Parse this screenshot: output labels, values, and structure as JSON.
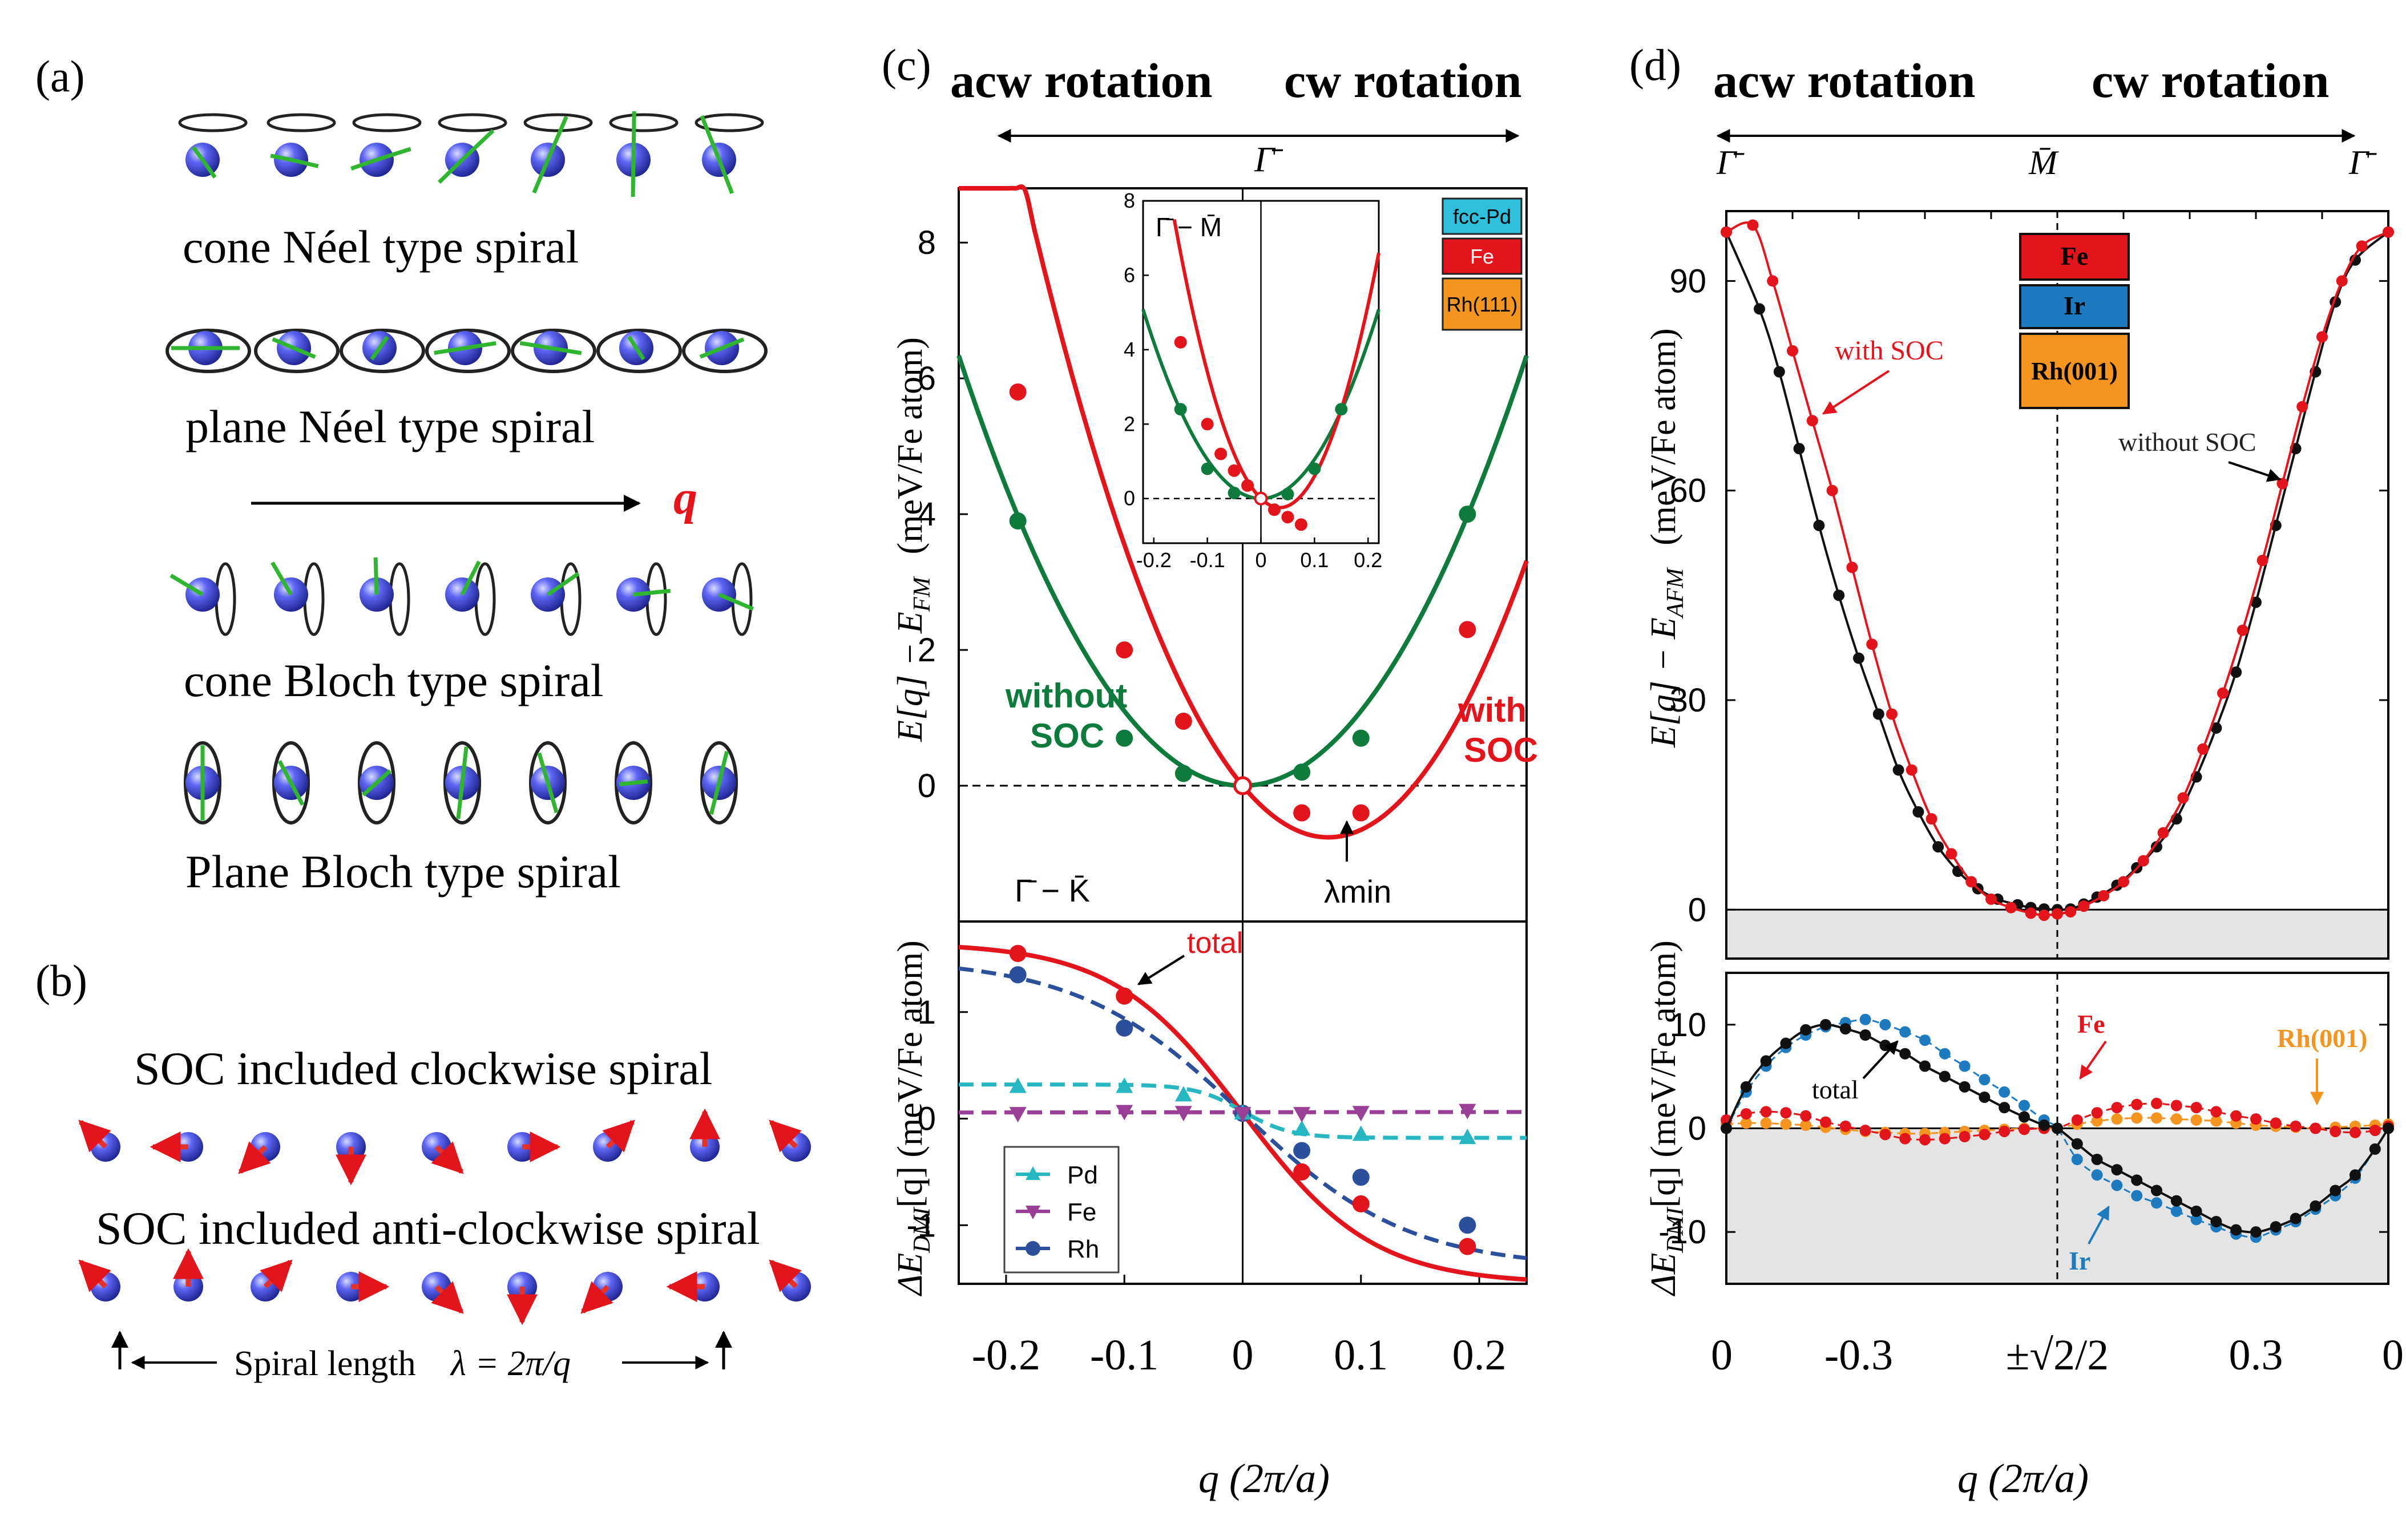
{
  "panel_a": {
    "label": "(a)",
    "rows": [
      {
        "caption": "cone Néel type spiral"
      },
      {
        "caption": "plane Néel type spiral"
      },
      {
        "caption": "cone Bloch type spiral"
      },
      {
        "caption": "Plane Bloch type spiral"
      }
    ],
    "q_label": "q",
    "q_color": "#e8131b"
  },
  "panel_b": {
    "label": "(b)",
    "caption_cw": "SOC included clockwise spiral",
    "caption_acw": "SOC included anti-clockwise spiral",
    "spiral_length_label": "Spiral length",
    "lambda_label": "λ = 2π/q"
  },
  "colors": {
    "red": "#e4141c",
    "green": "#0e7a3c",
    "black": "#111111",
    "blue": "#1f7bc0",
    "orange": "#f5941e",
    "cyan": "#27b7c1",
    "purple": "#9b3f96",
    "navy": "#2c4f9c",
    "sphere": "#3e46e0",
    "spin_green": "#2fb52f",
    "spin_red": "#e5332a"
  },
  "chart_data": [
    {
      "id": "c-top",
      "type": "line",
      "panel_label": "(c)",
      "header_left": "acw rotation",
      "header_right": "cw rotation",
      "top_symbol": "Γ̄",
      "ylabel": "E[q] − E_FM (meV/Fe atom)",
      "ylabel_a": "E[q] − E",
      "ylabel_sub": "FM",
      "ylabel_b": "(meV/Fe atom)",
      "xlim": [
        -0.24,
        0.24
      ],
      "ylim": [
        -2.0,
        8.8
      ],
      "yticks": [
        "0",
        "2",
        "4",
        "6",
        "8"
      ],
      "path_label": "Γ̄ − K̄",
      "annotation_left": [
        "without",
        "SOC"
      ],
      "annotation_right": [
        "with",
        "SOC"
      ],
      "annotation_min": "λmin",
      "series": [
        {
          "name": "without SOC",
          "color": "green",
          "x": [
            -0.19,
            -0.1,
            -0.05,
            0.0,
            0.05,
            0.1,
            0.19
          ],
          "y": [
            3.9,
            0.7,
            0.18,
            0.0,
            0.2,
            0.7,
            4.0
          ]
        },
        {
          "name": "with SOC",
          "color": "red",
          "x": [
            -0.19,
            -0.1,
            -0.05,
            0.0,
            0.05,
            0.1,
            0.19
          ],
          "y": [
            5.8,
            2.0,
            0.95,
            0.0,
            -0.4,
            -0.4,
            2.3
          ]
        }
      ]
    },
    {
      "id": "c-inset",
      "type": "line",
      "path_label": "Γ̄ − M̄",
      "xlim": [
        -0.22,
        0.22
      ],
      "ylim": [
        -1.2,
        8
      ],
      "xticks": [
        "-0.2",
        "-0.1",
        "0",
        "0.1",
        "0.2"
      ],
      "yticks": [
        "0",
        "2",
        "4",
        "6",
        "8"
      ],
      "legend": [
        "fcc-Pd",
        "Fe",
        "Rh(111)"
      ],
      "legend_colors": [
        "#2fbfdc",
        "#e4141c",
        "#f5941e"
      ],
      "series": [
        {
          "name": "without SOC",
          "color": "green",
          "x": [
            -0.15,
            -0.1,
            -0.05,
            0.0,
            0.05,
            0.1,
            0.15
          ],
          "y": [
            2.4,
            0.8,
            0.15,
            0.0,
            0.12,
            0.8,
            2.4
          ]
        },
        {
          "name": "with SOC",
          "color": "red",
          "x": [
            -0.15,
            -0.1,
            -0.075,
            -0.05,
            -0.025,
            0.0,
            0.025,
            0.05,
            0.075
          ],
          "y": [
            4.2,
            2.0,
            1.2,
            0.75,
            0.35,
            0.0,
            -0.3,
            -0.5,
            -0.7
          ]
        }
      ]
    },
    {
      "id": "c-bottom",
      "type": "line",
      "ylabel": "ΔE_DMI[q] (meV/Fe atom)",
      "ylabel_a": "ΔE",
      "ylabel_sub": "DMI",
      "ylabel_b": "[q]  (meV/Fe atom)",
      "xlim": [
        -0.24,
        0.24
      ],
      "ylim": [
        -1.55,
        1.85
      ],
      "xticks": [
        "-0.2",
        "-0.1",
        "0",
        "0.1",
        "0.2"
      ],
      "yticks": [
        "-1",
        "0",
        "1"
      ],
      "xlabel": "q (2π/a)",
      "total_label": "total",
      "legend": [
        "Pd",
        "Fe",
        "Rh"
      ],
      "series": [
        {
          "name": "total",
          "color": "red",
          "x": [
            -0.19,
            -0.1,
            0.0,
            0.05,
            0.1,
            0.19
          ],
          "y": [
            1.55,
            1.15,
            0.05,
            -0.5,
            -0.8,
            -1.2
          ]
        },
        {
          "name": "Rh",
          "color": "navy",
          "x": [
            -0.19,
            -0.1,
            0.0,
            0.05,
            0.1,
            0.19
          ],
          "y": [
            1.35,
            0.85,
            0.05,
            -0.3,
            -0.55,
            -1.0
          ]
        },
        {
          "name": "Pd",
          "color": "cyan",
          "x": [
            -0.19,
            -0.1,
            -0.05,
            0.0,
            0.05,
            0.1,
            0.19
          ],
          "y": [
            0.3,
            0.3,
            0.22,
            0.05,
            -0.1,
            -0.15,
            -0.18
          ]
        },
        {
          "name": "Fe",
          "color": "purple",
          "x": [
            -0.19,
            -0.1,
            -0.05,
            0.0,
            0.05,
            0.1,
            0.19
          ],
          "y": [
            0.05,
            0.07,
            0.06,
            0.05,
            0.05,
            0.06,
            0.08
          ]
        }
      ]
    },
    {
      "id": "d-top",
      "type": "line",
      "panel_label": "(d)",
      "header_left": "acw rotation",
      "header_right": "cw rotation",
      "top_symbols": [
        "Γ̄",
        "M̄",
        "Γ̄"
      ],
      "ylabel": "E[q] − E_AFM (meV/Fe atom)",
      "ylabel_a": "E[q] − E",
      "ylabel_sub": "AFM",
      "ylabel_b": "(meV/Fe atom)",
      "xlim": [
        0,
        1
      ],
      "ylim": [
        -7,
        100
      ],
      "yticks": [
        "0",
        "30",
        "60",
        "90"
      ],
      "legend": [
        "Fe",
        "Ir",
        "Rh(001)"
      ],
      "label_with_soc": "with SOC",
      "label_without_soc": "without SOC",
      "series": [
        {
          "name": "without SOC",
          "color": "black",
          "x": [
            0.0,
            0.05,
            0.08,
            0.11,
            0.14,
            0.17,
            0.2,
            0.23,
            0.26,
            0.29,
            0.32,
            0.35,
            0.38,
            0.41,
            0.44,
            0.46,
            0.48,
            0.5,
            0.52,
            0.54,
            0.56,
            0.59,
            0.62,
            0.65,
            0.68,
            0.71,
            0.74,
            0.77,
            0.8,
            0.83,
            0.86,
            0.89,
            0.92,
            0.95,
            1.0
          ],
          "y": [
            97,
            86,
            77,
            66,
            55,
            45,
            36,
            28,
            20,
            14,
            9,
            5.5,
            3,
            1.5,
            0.7,
            0.3,
            0.1,
            0,
            0.1,
            0.8,
            1.8,
            3.5,
            6,
            9,
            13,
            19,
            26,
            34,
            44,
            55,
            66,
            77,
            87,
            93,
            97
          ]
        },
        {
          "name": "with SOC",
          "color": "red",
          "x": [
            0.0,
            0.04,
            0.07,
            0.1,
            0.13,
            0.16,
            0.19,
            0.22,
            0.25,
            0.28,
            0.31,
            0.34,
            0.37,
            0.4,
            0.43,
            0.46,
            0.48,
            0.5,
            0.52,
            0.54,
            0.57,
            0.6,
            0.63,
            0.66,
            0.69,
            0.72,
            0.75,
            0.78,
            0.81,
            0.84,
            0.87,
            0.9,
            0.93,
            0.96,
            1.0
          ],
          "y": [
            97,
            98,
            90,
            80,
            70,
            60,
            49,
            38,
            28,
            20,
            13,
            8,
            4,
            1.5,
            0.3,
            -0.5,
            -0.8,
            -0.6,
            -0.3,
            0.5,
            2,
            4,
            7,
            11,
            16,
            23,
            31,
            40,
            50,
            61,
            72,
            82,
            90,
            95,
            97
          ]
        }
      ]
    },
    {
      "id": "d-bottom",
      "type": "line",
      "ylabel": "ΔE_DMI[q] (meV/Fe atom)",
      "ylabel_a": "ΔE",
      "ylabel_sub": "DMI",
      "ylabel_b": "[q]  (meV/Fe atom)",
      "xlim": [
        0,
        1
      ],
      "ylim": [
        -15,
        15
      ],
      "yticks": [
        "-10",
        "0",
        "10"
      ],
      "xticks": [
        "0",
        "-0.3",
        "±√2/2",
        "0.3",
        "0"
      ],
      "xlabel": "q (2π/a)",
      "labels": [
        "total",
        "Fe",
        "Ir",
        "Rh(001)"
      ],
      "series": [
        {
          "name": "total",
          "color": "black",
          "x": [
            0.0,
            0.03,
            0.06,
            0.09,
            0.12,
            0.15,
            0.18,
            0.21,
            0.24,
            0.27,
            0.3,
            0.33,
            0.36,
            0.39,
            0.42,
            0.45,
            0.48,
            0.5,
            0.53,
            0.56,
            0.59,
            0.62,
            0.65,
            0.68,
            0.71,
            0.74,
            0.77,
            0.8,
            0.83,
            0.86,
            0.89,
            0.92,
            0.95,
            0.98,
            1.0
          ],
          "y": [
            0,
            4,
            6.5,
            8.2,
            9.5,
            10,
            9.6,
            9,
            8,
            7.2,
            6,
            5,
            4,
            3,
            2,
            1.1,
            0.3,
            0,
            -1.5,
            -3,
            -4,
            -5,
            -6,
            -7,
            -8,
            -9,
            -9.8,
            -10,
            -9.5,
            -8.7,
            -7.5,
            -6,
            -4.5,
            -2,
            0
          ]
        },
        {
          "name": "Ir",
          "color": "blue",
          "x": [
            0.0,
            0.03,
            0.06,
            0.09,
            0.12,
            0.15,
            0.18,
            0.21,
            0.24,
            0.27,
            0.3,
            0.33,
            0.36,
            0.39,
            0.42,
            0.45,
            0.48,
            0.5,
            0.53,
            0.56,
            0.59,
            0.62,
            0.65,
            0.68,
            0.71,
            0.74,
            0.77,
            0.8,
            0.83,
            0.86,
            0.89,
            0.92,
            0.95,
            0.98,
            1.0
          ],
          "y": [
            0,
            3.5,
            6,
            7.8,
            9,
            9.8,
            10.2,
            10.5,
            10,
            9.3,
            8.5,
            7.2,
            6,
            4.7,
            3.5,
            2.2,
            0.8,
            0,
            -3,
            -4.5,
            -5.5,
            -6.5,
            -7.2,
            -8,
            -8.8,
            -9.5,
            -10.2,
            -10.5,
            -9.8,
            -9,
            -7.8,
            -6.5,
            -4.8,
            -2,
            0
          ]
        },
        {
          "name": "Fe",
          "color": "red",
          "x": [
            0.0,
            0.03,
            0.06,
            0.09,
            0.12,
            0.15,
            0.18,
            0.21,
            0.24,
            0.27,
            0.3,
            0.33,
            0.36,
            0.39,
            0.42,
            0.45,
            0.48,
            0.5,
            0.53,
            0.56,
            0.59,
            0.62,
            0.65,
            0.68,
            0.71,
            0.74,
            0.77,
            0.8,
            0.83,
            0.86,
            0.89,
            0.92,
            0.95,
            0.98,
            1.0
          ],
          "y": [
            0.8,
            1.4,
            1.6,
            1.5,
            1.2,
            0.6,
            0.2,
            -0.2,
            -0.6,
            -1.0,
            -1.1,
            -1.0,
            -0.8,
            -0.6,
            -0.3,
            -0.1,
            0.0,
            0,
            0.8,
            1.5,
            2.0,
            2.3,
            2.4,
            2.2,
            2.0,
            1.6,
            1.2,
            0.9,
            0.5,
            0.2,
            0.0,
            -0.3,
            -0.4,
            -0.2,
            0.2
          ]
        },
        {
          "name": "Rh(001)",
          "color": "orange",
          "x": [
            0.0,
            0.03,
            0.06,
            0.09,
            0.12,
            0.15,
            0.18,
            0.21,
            0.24,
            0.27,
            0.3,
            0.33,
            0.36,
            0.39,
            0.42,
            0.45,
            0.48,
            0.5,
            0.53,
            0.56,
            0.59,
            0.62,
            0.65,
            0.68,
            0.71,
            0.74,
            0.77,
            0.8,
            0.83,
            0.86,
            0.89,
            0.92,
            0.95,
            0.98,
            1.0
          ],
          "y": [
            0.4,
            0.5,
            0.5,
            0.4,
            0.3,
            0.1,
            -0.1,
            -0.3,
            -0.4,
            -0.5,
            -0.5,
            -0.4,
            -0.3,
            -0.2,
            -0.1,
            0.0,
            0.0,
            0,
            0.4,
            0.7,
            0.9,
            1.0,
            1.0,
            0.9,
            0.8,
            0.7,
            0.5,
            0.3,
            0.2,
            0.1,
            0.0,
            0.1,
            0.2,
            0.3,
            0.4
          ]
        }
      ]
    }
  ]
}
